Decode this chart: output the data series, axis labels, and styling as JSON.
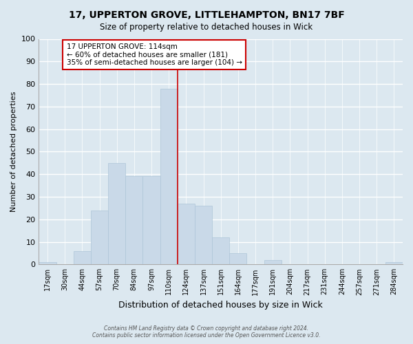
{
  "title1": "17, UPPERTON GROVE, LITTLEHAMPTON, BN17 7BF",
  "title2": "Size of property relative to detached houses in Wick",
  "xlabel": "Distribution of detached houses by size in Wick",
  "ylabel": "Number of detached properties",
  "bar_labels": [
    "17sqm",
    "30sqm",
    "44sqm",
    "57sqm",
    "70sqm",
    "84sqm",
    "97sqm",
    "110sqm",
    "124sqm",
    "137sqm",
    "151sqm",
    "164sqm",
    "177sqm",
    "191sqm",
    "204sqm",
    "217sqm",
    "231sqm",
    "244sqm",
    "257sqm",
    "271sqm",
    "284sqm"
  ],
  "bar_values": [
    1,
    0,
    6,
    24,
    45,
    39,
    39,
    78,
    27,
    26,
    12,
    5,
    0,
    2,
    0,
    0,
    0,
    0,
    0,
    0,
    1
  ],
  "bar_color": "#c9d9e8",
  "bar_edge_color": "#aec6d8",
  "grid_color": "#ffffff",
  "bg_color": "#dce8f0",
  "axes_bg_color": "#dce8f0",
  "property_line_x": 7.5,
  "property_line_color": "#cc0000",
  "annotation_text_line1": "17 UPPERTON GROVE: 114sqm",
  "annotation_text_line2": "← 60% of detached houses are smaller (181)",
  "annotation_text_line3": "35% of semi-detached houses are larger (104) →",
  "annotation_box_color": "#ffffff",
  "annotation_border_color": "#cc0000",
  "ylim": [
    0,
    100
  ],
  "footer1": "Contains HM Land Registry data © Crown copyright and database right 2024.",
  "footer2": "Contains public sector information licensed under the Open Government Licence v3.0."
}
